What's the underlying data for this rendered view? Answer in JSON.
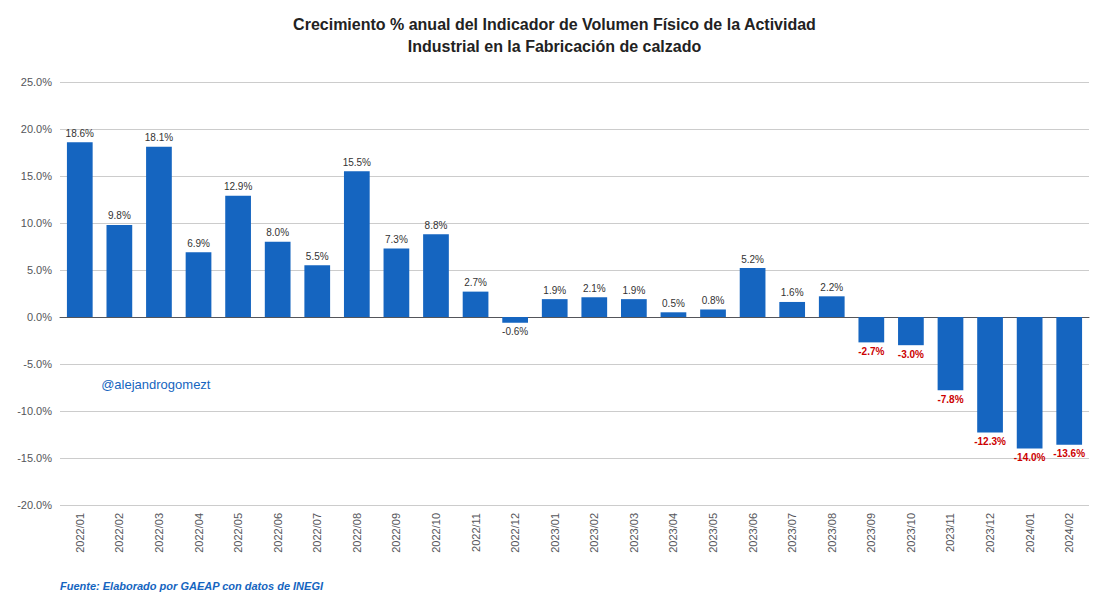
{
  "chart_data": {
    "type": "bar",
    "title": "Crecimiento % anual del Indicador de Volumen Físico de la Actividad\nIndustrial en la Fabricación de calzado",
    "categories": [
      "2022/01",
      "2022/02",
      "2022/03",
      "2022/04",
      "2022/05",
      "2022/06",
      "2022/07",
      "2022/08",
      "2022/09",
      "2022/10",
      "2022/11",
      "2022/12",
      "2023/01",
      "2023/02",
      "2023/03",
      "2023/04",
      "2023/05",
      "2023/06",
      "2023/07",
      "2023/08",
      "2023/09",
      "2023/10",
      "2023/11",
      "2023/12",
      "2024/01",
      "2024/02"
    ],
    "values": [
      18.6,
      9.8,
      18.1,
      6.9,
      12.9,
      8.0,
      5.5,
      15.5,
      7.3,
      8.8,
      2.7,
      -0.6,
      1.9,
      2.1,
      1.9,
      0.5,
      0.8,
      5.2,
      1.6,
      2.2,
      -2.7,
      -3.0,
      -7.8,
      -12.3,
      -14.0,
      -13.6
    ],
    "value_labels": [
      "18.6%",
      "9.8%",
      "18.1%",
      "6.9%",
      "12.9%",
      "8.0%",
      "5.5%",
      "15.5%",
      "7.3%",
      "8.8%",
      "2.7%",
      "-0.6%",
      "1.9%",
      "2.1%",
      "1.9%",
      "0.5%",
      "0.8%",
      "5.2%",
      "1.6%",
      "2.2%",
      "-2.7%",
      "-3.0%",
      "-7.8%",
      "-12.3%",
      "-14.0%",
      "-13.6%"
    ],
    "data_labels": true,
    "color": "#1565c0",
    "ylim": [
      -20.0,
      25.0
    ],
    "yticks": [
      {
        "value": -20.0,
        "label": "-20.0%"
      },
      {
        "value": -15.0,
        "label": "-15.0%"
      },
      {
        "value": -10.0,
        "label": "-10.0%"
      },
      {
        "value": -5.0,
        "label": "-5.0%"
      },
      {
        "value": 0.0,
        "label": "0.0%"
      },
      {
        "value": 5.0,
        "label": "5.0%"
      },
      {
        "value": 10.0,
        "label": "10.0%"
      },
      {
        "value": 15.0,
        "label": "15.0%"
      },
      {
        "value": 20.0,
        "label": "20.0%"
      },
      {
        "value": 25.0,
        "label": "25.0%"
      }
    ],
    "grid": true,
    "annotations": [
      "@alejandrogomezt",
      "Fuente: Elaborado por GAEAP con datos de INEGI"
    ]
  }
}
